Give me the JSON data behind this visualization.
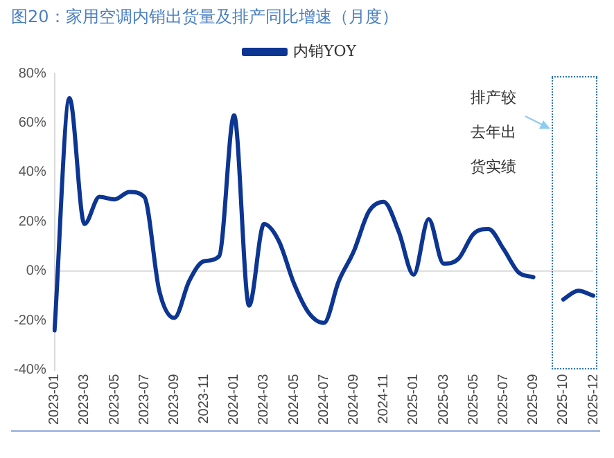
{
  "chart_data": {
    "type": "line",
    "title": "图20：家用空调内销出货量及排产同比增速（月度）",
    "categories": [
      "2023-01",
      null,
      "2023-03",
      null,
      "2023-05",
      null,
      "2023-07",
      null,
      "2023-09",
      null,
      "2023-11",
      null,
      "2024-01",
      null,
      "2024-03",
      null,
      "2024-05",
      null,
      "2024-07",
      null,
      "2024-09",
      null,
      "2024-11",
      null,
      "2025-01",
      null,
      "2025-03",
      null,
      "2025-05",
      null,
      "2025-07",
      null,
      "2025-09",
      null,
      "2025-10",
      null,
      "2025-12"
    ],
    "series": [
      {
        "name": "内销YOY",
        "color": "#0d3592",
        "values": [
          -24,
          70,
          19,
          30,
          29,
          32,
          30,
          -8,
          -19,
          -4,
          4,
          6,
          63,
          -14,
          19,
          12,
          -5,
          -17,
          -21,
          -4,
          8,
          24,
          28,
          16,
          -1.5,
          21,
          3,
          5,
          15,
          17,
          9,
          -0.5,
          -2.5,
          null,
          null,
          null,
          null
        ]
      },
      {
        "color": "#0d3592",
        "values": [
          null,
          null,
          null,
          null,
          null,
          null,
          null,
          null,
          null,
          null,
          null,
          null,
          null,
          null,
          null,
          null,
          null,
          null,
          null,
          null,
          null,
          null,
          null,
          null,
          null,
          null,
          null,
          null,
          null,
          null,
          null,
          null,
          null,
          null,
          -11.5,
          -8,
          -10
        ]
      }
    ],
    "ylim": [
      -40,
      80
    ],
    "yticks": [
      {
        "value": -40,
        "label": "-40%"
      },
      {
        "value": -20,
        "label": "-20%"
      },
      {
        "value": 0,
        "label": "0%"
      },
      {
        "value": 20,
        "label": "20%"
      },
      {
        "value": 40,
        "label": "40%"
      },
      {
        "value": 60,
        "label": "60%"
      },
      {
        "value": 80,
        "label": "80%"
      }
    ],
    "ref_lines": [
      {
        "axis": "y",
        "value": 0,
        "color": "#d9d9d9"
      }
    ],
    "annotations": [
      "排产较去年出货实绩"
    ],
    "legend": "top",
    "marker": "none",
    "line_style": "solid",
    "grid": false
  }
}
